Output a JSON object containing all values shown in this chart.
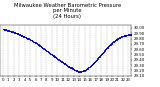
{
  "title": "Milwaukee Weather Barometric Pressure\nper Minute\n(24 Hours)",
  "title_fontsize": 3.8,
  "dot_color": "#0000ff",
  "dot_size": 0.4,
  "bg_color": "#ffffff",
  "grid_color": "#aaaaaa",
  "tick_color": "#000000",
  "tick_fontsize": 2.8,
  "hours": [
    0,
    1,
    2,
    3,
    4,
    5,
    6,
    7,
    8,
    9,
    10,
    11,
    12,
    13,
    14,
    15,
    16,
    17,
    18,
    19,
    20,
    21,
    22,
    23
  ],
  "pressure": [
    29.98,
    29.95,
    29.92,
    29.88,
    29.83,
    29.78,
    29.72,
    29.65,
    29.57,
    29.5,
    29.42,
    29.35,
    29.28,
    29.22,
    29.17,
    29.2,
    29.28,
    29.38,
    29.5,
    29.62,
    29.72,
    29.8,
    29.85,
    29.87
  ],
  "ylim": [
    29.1,
    30.05
  ],
  "yticks": [
    29.1,
    29.2,
    29.3,
    29.4,
    29.5,
    29.6,
    29.7,
    29.8,
    29.9,
    30.0
  ],
  "xlim": [
    -0.5,
    23.5
  ],
  "xticks": [
    0,
    1,
    2,
    3,
    4,
    5,
    6,
    7,
    8,
    9,
    10,
    11,
    12,
    13,
    14,
    15,
    16,
    17,
    18,
    19,
    20,
    21,
    22,
    23
  ]
}
